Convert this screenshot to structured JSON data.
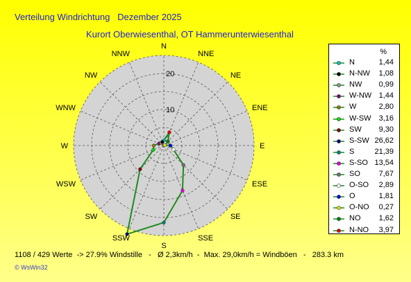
{
  "header": {
    "title": "Verteilung Windrichtung   Dezember 2025",
    "subtitle": "Kurort Oberwiesenthal, OT Hammerunterwiesenthal"
  },
  "footer": {
    "stats": "1108 / 429 Werte  -> 27.9% Windstille   -   Ø 2,3km/h  -  Max. 29,0km/h = Windböen   -   283.3 km",
    "credit": "© WsWin32"
  },
  "chart_data": {
    "type": "radar",
    "unit": "%",
    "rmax": 25,
    "rings": [
      5,
      10,
      15,
      20,
      25
    ],
    "tick_labels": [
      "10",
      "20"
    ],
    "tick_values": [
      10,
      20
    ],
    "line_color": "#1d8a1d",
    "directions": [
      "N",
      "NNE",
      "NE",
      "ENE",
      "E",
      "ESE",
      "SE",
      "SSE",
      "S",
      "SSW",
      "SW",
      "WSW",
      "W",
      "WNW",
      "NW",
      "NNW"
    ],
    "values": [
      1.44,
      3.97,
      1.62,
      0.27,
      1.81,
      2.89,
      7.67,
      13.54,
      21.39,
      26.62,
      9.3,
      3.16,
      2.8,
      1.44,
      0.99,
      1.08
    ],
    "legend": [
      {
        "name": "N",
        "value": "1,44",
        "color": "#00c0c0"
      },
      {
        "name": "N-NW",
        "value": "1,08",
        "color": "#000000"
      },
      {
        "name": "NW",
        "value": "0,99",
        "color": "#909090"
      },
      {
        "name": "W-NW",
        "value": "1,44",
        "color": "#800080"
      },
      {
        "name": "W",
        "value": "2,80",
        "color": "#808000"
      },
      {
        "name": "W-SW",
        "value": "3,16",
        "color": "#00e000"
      },
      {
        "name": "SW",
        "value": "9,30",
        "color": "#800000"
      },
      {
        "name": "S-SW",
        "value": "26,62",
        "color": "#000080"
      },
      {
        "name": "S",
        "value": "21,39",
        "color": "#008080"
      },
      {
        "name": "S-SO",
        "value": "13,54",
        "color": "#e000e0"
      },
      {
        "name": "SO",
        "value": "7,67",
        "color": "#707070"
      },
      {
        "name": "O-SO",
        "value": "2,89",
        "color": "#ffffff"
      },
      {
        "name": "O",
        "value": "1,81",
        "color": "#0000e0"
      },
      {
        "name": "O-NO",
        "value": "0,27",
        "color": "#e0e000"
      },
      {
        "name": "NO",
        "value": "1,62",
        "color": "#008000"
      },
      {
        "name": "N-NO",
        "value": "3,97",
        "color": "#e00000"
      }
    ],
    "legend_unit": "%"
  }
}
